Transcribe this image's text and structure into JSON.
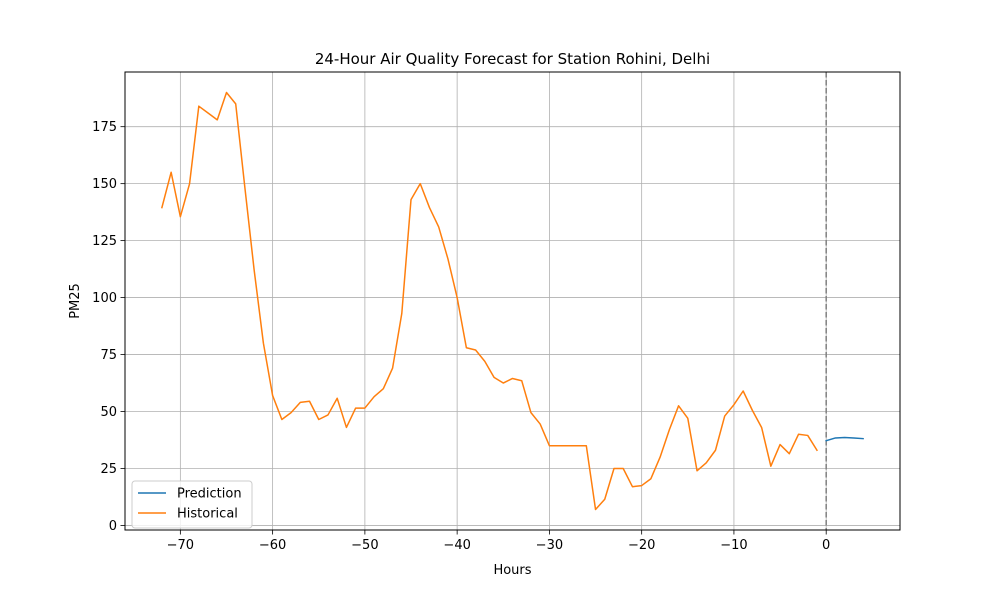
{
  "chart_data": {
    "type": "line",
    "title": "24-Hour Air Quality Forecast for Station Rohini, Delhi",
    "xlabel": "Hours",
    "ylabel": "PM25",
    "xlim": [
      -76,
      8
    ],
    "ylim": [
      -2,
      199
    ],
    "xticks": [
      -70,
      -60,
      -50,
      -40,
      -30,
      -20,
      -10,
      0
    ],
    "yticks": [
      0,
      25,
      50,
      75,
      100,
      125,
      150,
      175
    ],
    "grid": true,
    "legend_position": "lower-left",
    "vline": {
      "x": 0,
      "style": "dashed",
      "color": "#808080"
    },
    "series": [
      {
        "name": "Prediction",
        "color": "#1f77b4",
        "x": [
          0,
          1,
          2,
          3,
          4
        ],
        "y": [
          37.2,
          38.4,
          38.6,
          38.4,
          38.1
        ]
      },
      {
        "name": "Historical",
        "color": "#ff7f0e",
        "x": [
          -72,
          -71,
          -70,
          -69,
          -68,
          -67,
          -66,
          -65,
          -64,
          -63,
          -62,
          -61,
          -60,
          -59,
          -58,
          -57,
          -56,
          -55,
          -54,
          -53,
          -52,
          -51,
          -50,
          -49,
          -48,
          -47,
          -46,
          -45,
          -44,
          -43,
          -42,
          -41,
          -40,
          -39,
          -38,
          -37,
          -36,
          -35,
          -34,
          -33,
          -32,
          -31,
          -30,
          -29,
          -28,
          -27,
          -26,
          -25,
          -24,
          -23,
          -22,
          -21,
          -20,
          -19,
          -18,
          -17,
          -16,
          -15,
          -14,
          -13,
          -12,
          -11,
          -10,
          -9,
          -8,
          -7,
          -6,
          -5,
          -4,
          -3,
          -2,
          -1
        ],
        "y": [
          139.5,
          155,
          135.5,
          150,
          184,
          181,
          178,
          190,
          185,
          148,
          112,
          80,
          57,
          46.5,
          49.5,
          54,
          54.5,
          46.5,
          48.5,
          55.8,
          43,
          51.5,
          51.5,
          56.5,
          60,
          69,
          93,
          143,
          150,
          139.5,
          131,
          117,
          100,
          78,
          77,
          72,
          65,
          62.5,
          64.5,
          63.5,
          49.5,
          44.5,
          35,
          35,
          35,
          35,
          35,
          7,
          11.5,
          25,
          25,
          17,
          17.5,
          20.5,
          30,
          42,
          52.5,
          47,
          24,
          27.5,
          33,
          48,
          53,
          59,
          50.5,
          43,
          26,
          35.5,
          31.5,
          40,
          39.5,
          33
        ]
      }
    ]
  }
}
